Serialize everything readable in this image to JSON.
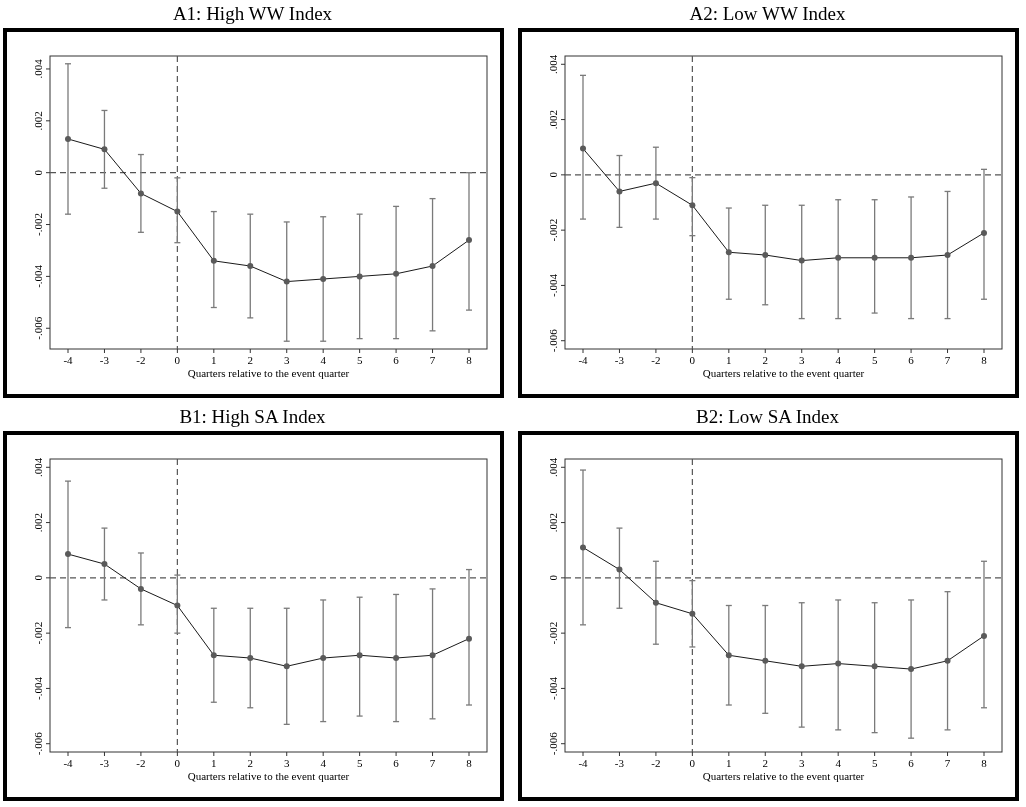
{
  "chart_data": [
    {
      "type": "line",
      "title": "A1: High WW Index",
      "xlabel": "Quarters relative to the event quarter",
      "categories": [
        "-4",
        "-3",
        "-2",
        "0",
        "1",
        "2",
        "3",
        "4",
        "5",
        "6",
        "7",
        "8"
      ],
      "series": [
        {
          "color": "#1a1a1a",
          "values": [
            0.0013,
            0.0009,
            -0.0008,
            -0.0015,
            -0.0034,
            -0.0036,
            -0.0042,
            -0.0041,
            -0.004,
            -0.0039,
            -0.0036,
            -0.0026
          ],
          "errors": [
            [
              -0.0016,
              0.0042
            ],
            [
              -0.0006,
              0.0024
            ],
            [
              -0.0023,
              0.0007
            ],
            [
              -0.0027,
              -0.0002
            ],
            [
              -0.0052,
              -0.0015
            ],
            [
              -0.0056,
              -0.0016
            ],
            [
              -0.0065,
              -0.0019
            ],
            [
              -0.0065,
              -0.0017
            ],
            [
              -0.0064,
              -0.0016
            ],
            [
              -0.0064,
              -0.0013
            ],
            [
              -0.0061,
              -0.001
            ],
            [
              -0.0053,
              0.0
            ]
          ]
        }
      ],
      "ylim": [
        -0.0068,
        0.0045
      ],
      "yticks": [
        {
          "value": -0.006,
          "label": "-.006"
        },
        {
          "value": -0.004,
          "label": "-.004"
        },
        {
          "value": -0.002,
          "label": "-.002"
        },
        {
          "value": 0,
          "label": "0"
        },
        {
          "value": 0.002,
          "label": ".002"
        },
        {
          "value": 0.004,
          "label": ".004"
        }
      ],
      "ref_lines": [
        {
          "axis": "x",
          "value": "0",
          "line_style": "dashed",
          "color": "#555555"
        },
        {
          "axis": "y",
          "value": 0,
          "line_style": "dashed",
          "color": "#555555"
        }
      ],
      "marker": "circle",
      "line_style": "solid",
      "grid": false
    },
    {
      "type": "line",
      "title": "A2: Low WW Index",
      "xlabel": "Quarters relative to the event quarter",
      "categories": [
        "-4",
        "-3",
        "-2",
        "0",
        "1",
        "2",
        "3",
        "4",
        "5",
        "6",
        "7",
        "8"
      ],
      "series": [
        {
          "color": "#1a1a1a",
          "values": [
            0.00095,
            -0.0006,
            -0.0003,
            -0.0011,
            -0.0028,
            -0.0029,
            -0.0031,
            -0.003,
            -0.003,
            -0.003,
            -0.0029,
            -0.0021
          ],
          "errors": [
            [
              -0.0016,
              0.0036
            ],
            [
              -0.0019,
              0.0007
            ],
            [
              -0.0016,
              0.001
            ],
            [
              -0.0022,
              -0.0001
            ],
            [
              -0.0045,
              -0.0012
            ],
            [
              -0.0047,
              -0.0011
            ],
            [
              -0.0052,
              -0.0011
            ],
            [
              -0.0052,
              -0.0009
            ],
            [
              -0.005,
              -0.0009
            ],
            [
              -0.0052,
              -0.0008
            ],
            [
              -0.0052,
              -0.0006
            ],
            [
              -0.0045,
              0.0002
            ]
          ]
        }
      ],
      "ylim": [
        -0.0063,
        0.0043
      ],
      "yticks": [
        {
          "value": -0.006,
          "label": "-.006"
        },
        {
          "value": -0.004,
          "label": "-.004"
        },
        {
          "value": -0.002,
          "label": "-.002"
        },
        {
          "value": 0,
          "label": "0"
        },
        {
          "value": 0.002,
          "label": ".002"
        },
        {
          "value": 0.004,
          "label": ".004"
        }
      ],
      "ref_lines": [
        {
          "axis": "x",
          "value": "0",
          "line_style": "dashed",
          "color": "#555555"
        },
        {
          "axis": "y",
          "value": 0,
          "line_style": "dashed",
          "color": "#555555"
        }
      ],
      "marker": "circle",
      "line_style": "solid",
      "grid": false
    },
    {
      "type": "line",
      "title": "B1: High SA Index",
      "xlabel": "Quarters relative to the event quarter",
      "categories": [
        "-4",
        "-3",
        "-2",
        "0",
        "1",
        "2",
        "3",
        "4",
        "5",
        "6",
        "7",
        "8"
      ],
      "series": [
        {
          "color": "#1a1a1a",
          "values": [
            0.00086,
            0.0005,
            -0.0004,
            -0.001,
            -0.0028,
            -0.0029,
            -0.0032,
            -0.0029,
            -0.0028,
            -0.0029,
            -0.0028,
            -0.0022
          ],
          "errors": [
            [
              -0.0018,
              0.0035
            ],
            [
              -0.0008,
              0.0018
            ],
            [
              -0.0017,
              0.0009
            ],
            [
              -0.002,
              0.0001
            ],
            [
              -0.0045,
              -0.0011
            ],
            [
              -0.0047,
              -0.0011
            ],
            [
              -0.0053,
              -0.0011
            ],
            [
              -0.0052,
              -0.0008
            ],
            [
              -0.005,
              -0.0007
            ],
            [
              -0.0052,
              -0.0006
            ],
            [
              -0.0051,
              -0.0004
            ],
            [
              -0.0046,
              0.0003
            ]
          ]
        }
      ],
      "ylim": [
        -0.0063,
        0.0043
      ],
      "yticks": [
        {
          "value": -0.006,
          "label": "-.006"
        },
        {
          "value": -0.004,
          "label": "-.004"
        },
        {
          "value": -0.002,
          "label": "-.002"
        },
        {
          "value": 0,
          "label": "0"
        },
        {
          "value": 0.002,
          "label": ".002"
        },
        {
          "value": 0.004,
          "label": ".004"
        }
      ],
      "ref_lines": [
        {
          "axis": "x",
          "value": "0",
          "line_style": "dashed",
          "color": "#555555"
        },
        {
          "axis": "y",
          "value": 0,
          "line_style": "dashed",
          "color": "#555555"
        }
      ],
      "marker": "circle",
      "line_style": "solid",
      "grid": false
    },
    {
      "type": "line",
      "title": "B2: Low SA Index",
      "xlabel": "Quarters relative to the event quarter",
      "categories": [
        "-4",
        "-3",
        "-2",
        "0",
        "1",
        "2",
        "3",
        "4",
        "5",
        "6",
        "7",
        "8"
      ],
      "series": [
        {
          "color": "#1a1a1a",
          "values": [
            0.0011,
            0.0003,
            -0.0009,
            -0.0013,
            -0.0028,
            -0.003,
            -0.0032,
            -0.0031,
            -0.0032,
            -0.0033,
            -0.003,
            -0.0021
          ],
          "errors": [
            [
              -0.0017,
              0.0039
            ],
            [
              -0.0011,
              0.0018
            ],
            [
              -0.0024,
              0.0006
            ],
            [
              -0.0025,
              -0.0001
            ],
            [
              -0.0046,
              -0.001
            ],
            [
              -0.0049,
              -0.001
            ],
            [
              -0.0054,
              -0.0009
            ],
            [
              -0.0055,
              -0.0008
            ],
            [
              -0.0056,
              -0.0009
            ],
            [
              -0.0058,
              -0.0008
            ],
            [
              -0.0055,
              -0.0005
            ],
            [
              -0.0047,
              0.0006
            ]
          ]
        }
      ],
      "ylim": [
        -0.0063,
        0.0043
      ],
      "yticks": [
        {
          "value": -0.006,
          "label": "-.006"
        },
        {
          "value": -0.004,
          "label": "-.004"
        },
        {
          "value": -0.002,
          "label": "-.002"
        },
        {
          "value": 0,
          "label": "0"
        },
        {
          "value": 0.002,
          "label": ".002"
        },
        {
          "value": 0.004,
          "label": ".004"
        }
      ],
      "ref_lines": [
        {
          "axis": "x",
          "value": "0",
          "line_style": "dashed",
          "color": "#555555"
        },
        {
          "axis": "y",
          "value": 0,
          "line_style": "dashed",
          "color": "#555555"
        }
      ],
      "marker": "circle",
      "line_style": "solid",
      "grid": false
    }
  ]
}
